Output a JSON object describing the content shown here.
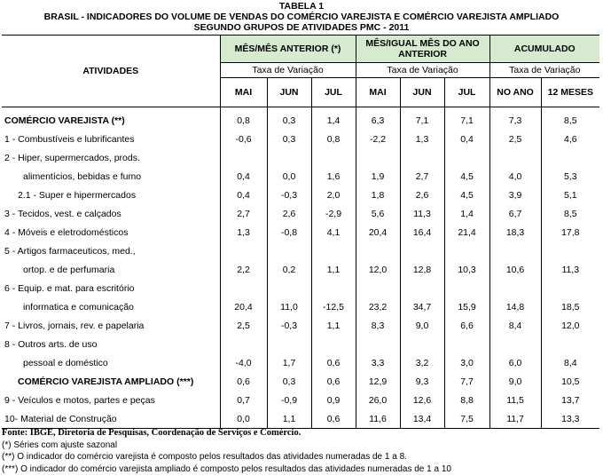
{
  "header": {
    "title1": "TABELA 1",
    "title2": "BRASIL - INDICADORES DO VOLUME DE VENDAS DO COMÉRCIO VAREJISTA E COMÉRCIO VAREJISTA AMPLIADO",
    "title3": "SEGUNDO GRUPOS DE ATIVIDADES PMC - 2011"
  },
  "columns": {
    "atividades": "ATIVIDADES",
    "group1": "MÊS/MÊS ANTERIOR (*)",
    "group2": "MÊS/IGUAL MÊS DO ANO ANTERIOR",
    "group3": "ACUMULADO",
    "rate": "Taxa de Variação",
    "months": [
      "MAI",
      "JUN",
      "JUL",
      "MAI",
      "JUN",
      "JUL",
      "NO ANO",
      "12 MESES"
    ]
  },
  "rows": [
    {
      "label": "COMÉRCIO VAREJISTA (**)",
      "label2": "",
      "values": [
        "0,8",
        "0,3",
        "1,4",
        "6,3",
        "7,1",
        "7,1",
        "7,3",
        "8,5"
      ]
    },
    {
      "label": "1 - Combustíveis e lubrificantes",
      "label2": "",
      "values": [
        "-0,6",
        "0,3",
        "0,8",
        "-2,2",
        "1,3",
        "0,4",
        "2,5",
        "4,6"
      ]
    },
    {
      "label": "2 - Hiper, supermercados, prods.",
      "label2": "alimentícios, bebidas e fumo",
      "values": [
        "0,4",
        "0,0",
        "1,6",
        "1,9",
        "2,7",
        "4,5",
        "4,0",
        "5,3"
      ]
    },
    {
      "label": "2.1 - Super e hipermercados",
      "label2": "",
      "values": [
        "0,4",
        "-0,3",
        "2,0",
        "1,8",
        "2,6",
        "4,5",
        "3,9",
        "5,1"
      ]
    },
    {
      "label": "3 - Tecidos, vest. e calçados",
      "label2": "",
      "values": [
        "2,7",
        "2,6",
        "-2,9",
        "5,6",
        "11,3",
        "1,4",
        "6,7",
        "8,5"
      ]
    },
    {
      "label": "4 - Móveis e eletrodomésticos",
      "label2": "",
      "values": [
        "1,3",
        "-0,8",
        "4,1",
        "20,4",
        "16,4",
        "21,4",
        "18,3",
        "17,8"
      ]
    },
    {
      "label": "5 - Artigos farmaceuticos, med.,",
      "label2": "ortop. e de perfumaria",
      "values": [
        "2,2",
        "0,2",
        "1,1",
        "12,0",
        "12,8",
        "10,3",
        "10,6",
        "11,3"
      ]
    },
    {
      "label": "6 - Equip. e mat. para escritório",
      "label2": "informatica e comunicação",
      "values": [
        "20,4",
        "11,0",
        "-12,5",
        "23,2",
        "34,7",
        "15,9",
        "14,8",
        "18,5"
      ]
    },
    {
      "label": "7 - Livros, jornais, rev. e papelaria",
      "label2": "",
      "values": [
        "2,5",
        "-0,3",
        "1,1",
        "8,3",
        "9,0",
        "6,6",
        "8,4",
        "12,0"
      ]
    },
    {
      "label": "8 - Outros arts. de uso",
      "label2": "pessoal e doméstico",
      "values": [
        "-4,0",
        "1,7",
        "0,6",
        "3,3",
        "3,2",
        "3,0",
        "6,0",
        "8,4"
      ]
    },
    {
      "label": "COMÉRCIO VAREJISTA AMPLIADO (***)",
      "label2": "",
      "values": [
        "0,6",
        "0,3",
        "0,6",
        "12,9",
        "9,3",
        "7,7",
        "9,0",
        "10,5"
      ]
    },
    {
      "label": "9 - Veículos e motos, partes e peças",
      "label2": "",
      "values": [
        "0,7",
        "-0,9",
        "0,9",
        "26,0",
        "12,6",
        "8,8",
        "11,5",
        "13,7"
      ]
    },
    {
      "label": "10- Material de Construção",
      "label2": "",
      "values": [
        "0,0",
        "1,1",
        "0,6",
        "11,6",
        "13,4",
        "7,5",
        "11,7",
        "13,3"
      ]
    }
  ],
  "notes": {
    "source": "Fonte: IBGE, Diretoria de Pesquisas, Coordenação de Serviços e Comércio.",
    "n1": "(*) Séries com ajuste sazonal",
    "n2": "(**) O indicador do comércio varejista é composto pelos resultados das atividades numeradas de 1 a 8.",
    "n3": "(***) O indicador do comércio varejista ampliado é composto pelos resultados das atividades numeradas de 1 a 10"
  }
}
